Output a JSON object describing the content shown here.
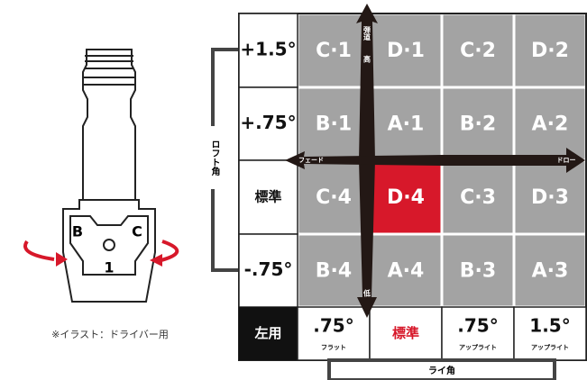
{
  "illustration": {
    "caption": "※イラスト：ドライバー用",
    "hosel_labels": [
      "B",
      "C",
      "1"
    ]
  },
  "axes": {
    "loft": "ロフト角",
    "lie": "ライ角"
  },
  "arrows": {
    "trajectory": "弾道",
    "high": "高",
    "low": "低",
    "fade": "フェード",
    "draw": "ドロー"
  },
  "grid": {
    "row_labels": [
      "+1.5°",
      "+.75°",
      "標準",
      "-.75°"
    ],
    "rows": [
      [
        "C·1",
        "D·1",
        "C·2",
        "D·2"
      ],
      [
        "B·1",
        "A·1",
        "B·2",
        "A·2"
      ],
      [
        "C·4",
        "D·4",
        "C·3",
        "D·3"
      ],
      [
        "B·4",
        "A·4",
        "B·3",
        "A·3"
      ]
    ],
    "bottom_row": {
      "corner": "左用",
      "columns": [
        {
          "value": ".75°",
          "label": "フラット"
        },
        {
          "value": "標準"
        },
        {
          "value": ".75°",
          "label": "アップライト"
        },
        {
          "value": "1.5°",
          "label": "アップライト"
        }
      ]
    }
  }
}
